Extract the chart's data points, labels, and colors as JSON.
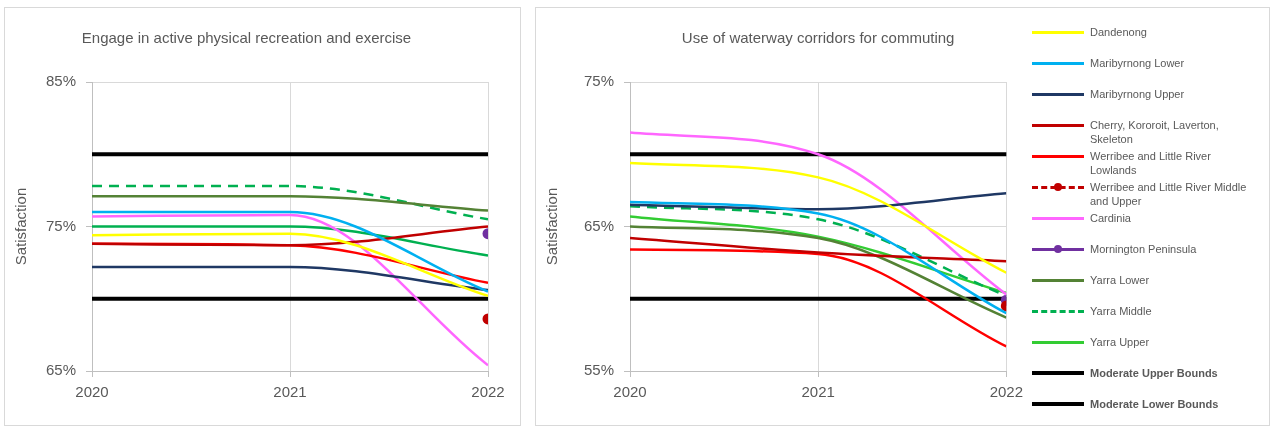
{
  "chart_data": [
    {
      "type": "line",
      "title": "Engage in active physical recreation and exercise",
      "ylabel": "Satisfaction",
      "x": [
        2020,
        2021,
        2022
      ],
      "xlim": [
        2020,
        2022
      ],
      "xticks": [
        2020,
        2021,
        2022
      ],
      "ylim": [
        65,
        85
      ],
      "yticks": [
        {
          "value": 65,
          "label": "65%"
        },
        {
          "value": 75,
          "label": "75%"
        },
        {
          "value": 85,
          "label": "85%"
        }
      ],
      "grid": true,
      "series": [
        {
          "color": "#ffff00",
          "values": [
            74.4,
            74.5,
            70.2
          ]
        },
        {
          "color": "#00b0f0",
          "values": [
            76.0,
            76.0,
            70.5
          ]
        },
        {
          "color": "#1f3864",
          "values": [
            72.2,
            72.2,
            70.6
          ]
        },
        {
          "color": "#c00000",
          "values": [
            73.8,
            73.7,
            75.0
          ]
        },
        {
          "color": "#ff0000",
          "values": [
            73.8,
            73.7,
            71.1
          ]
        },
        {
          "color": "#c00000",
          "values": [
            null,
            null,
            68.6
          ],
          "marker": "circle"
        },
        {
          "color": "#ff66ff",
          "values": [
            75.7,
            75.8,
            65.4
          ]
        },
        {
          "color": "#7030a0",
          "values": [
            null,
            null,
            74.5
          ],
          "marker": "circle"
        },
        {
          "color": "#548235",
          "values": [
            77.1,
            77.1,
            76.1
          ]
        },
        {
          "color": "#00b050",
          "values": [
            77.8,
            77.8,
            75.5
          ],
          "line_style": "dashed"
        },
        {
          "color": "#00b050",
          "values": [
            75.0,
            75.0,
            73.0
          ]
        }
      ],
      "ref_lines": [
        {
          "axis": "y",
          "value": 80,
          "color": "#000000"
        },
        {
          "axis": "y",
          "value": 70,
          "color": "#000000"
        }
      ]
    },
    {
      "type": "line",
      "title": "Use of waterway corridors for commuting",
      "ylabel": "Satisfaction",
      "x": [
        2020,
        2021,
        2022
      ],
      "xlim": [
        2020,
        2022
      ],
      "xticks": [
        2020,
        2021,
        2022
      ],
      "ylim": [
        55,
        75
      ],
      "yticks": [
        {
          "value": 55,
          "label": "55%"
        },
        {
          "value": 65,
          "label": "65%"
        },
        {
          "value": 75,
          "label": "75%"
        }
      ],
      "grid": true,
      "legend": "right",
      "series": [
        {
          "name": "Dandenong",
          "color": "#ffff00",
          "values": [
            69.4,
            68.4,
            61.8
          ]
        },
        {
          "name": "Maribyrnong Lower",
          "color": "#00b0f0",
          "values": [
            66.7,
            65.9,
            59.0
          ]
        },
        {
          "name": "Maribyrnong Upper",
          "color": "#1f3864",
          "values": [
            66.5,
            66.2,
            67.3
          ]
        },
        {
          "name": "Cherry, Kororoit, Laverton, Skeleton",
          "color": "#c00000",
          "values": [
            64.2,
            63.2,
            62.6
          ]
        },
        {
          "name": "Werribee and Little River Lowlands",
          "color": "#ff0000",
          "values": [
            63.4,
            63.1,
            56.7
          ]
        },
        {
          "name": "Werribee and Little River Middle and Upper",
          "color": "#c00000",
          "values": [
            null,
            null,
            59.5
          ],
          "marker": "circle",
          "line_style": "dashed"
        },
        {
          "name": "Cardinia",
          "color": "#ff66ff",
          "values": [
            71.5,
            70.0,
            60.3
          ]
        },
        {
          "name": "Mornington Peninsula",
          "color": "#7030a0",
          "values": [
            null,
            null,
            59.9
          ],
          "marker": "circle"
        },
        {
          "name": "Yarra Lower",
          "color": "#548235",
          "values": [
            65.0,
            64.2,
            58.7
          ]
        },
        {
          "name": "Yarra Middle",
          "color": "#00b050",
          "values": [
            66.4,
            65.5,
            60.2
          ],
          "line_style": "dashed"
        },
        {
          "name": "Yarra Upper",
          "color": "#33cc33",
          "values": [
            65.7,
            64.3,
            60.4
          ]
        }
      ],
      "ref_lines": [
        {
          "axis": "y",
          "value": 70,
          "color": "#000000",
          "label": "Moderate Upper Bounds"
        },
        {
          "axis": "y",
          "value": 60,
          "color": "#000000",
          "label": "Moderate Lower Bounds"
        }
      ]
    }
  ]
}
